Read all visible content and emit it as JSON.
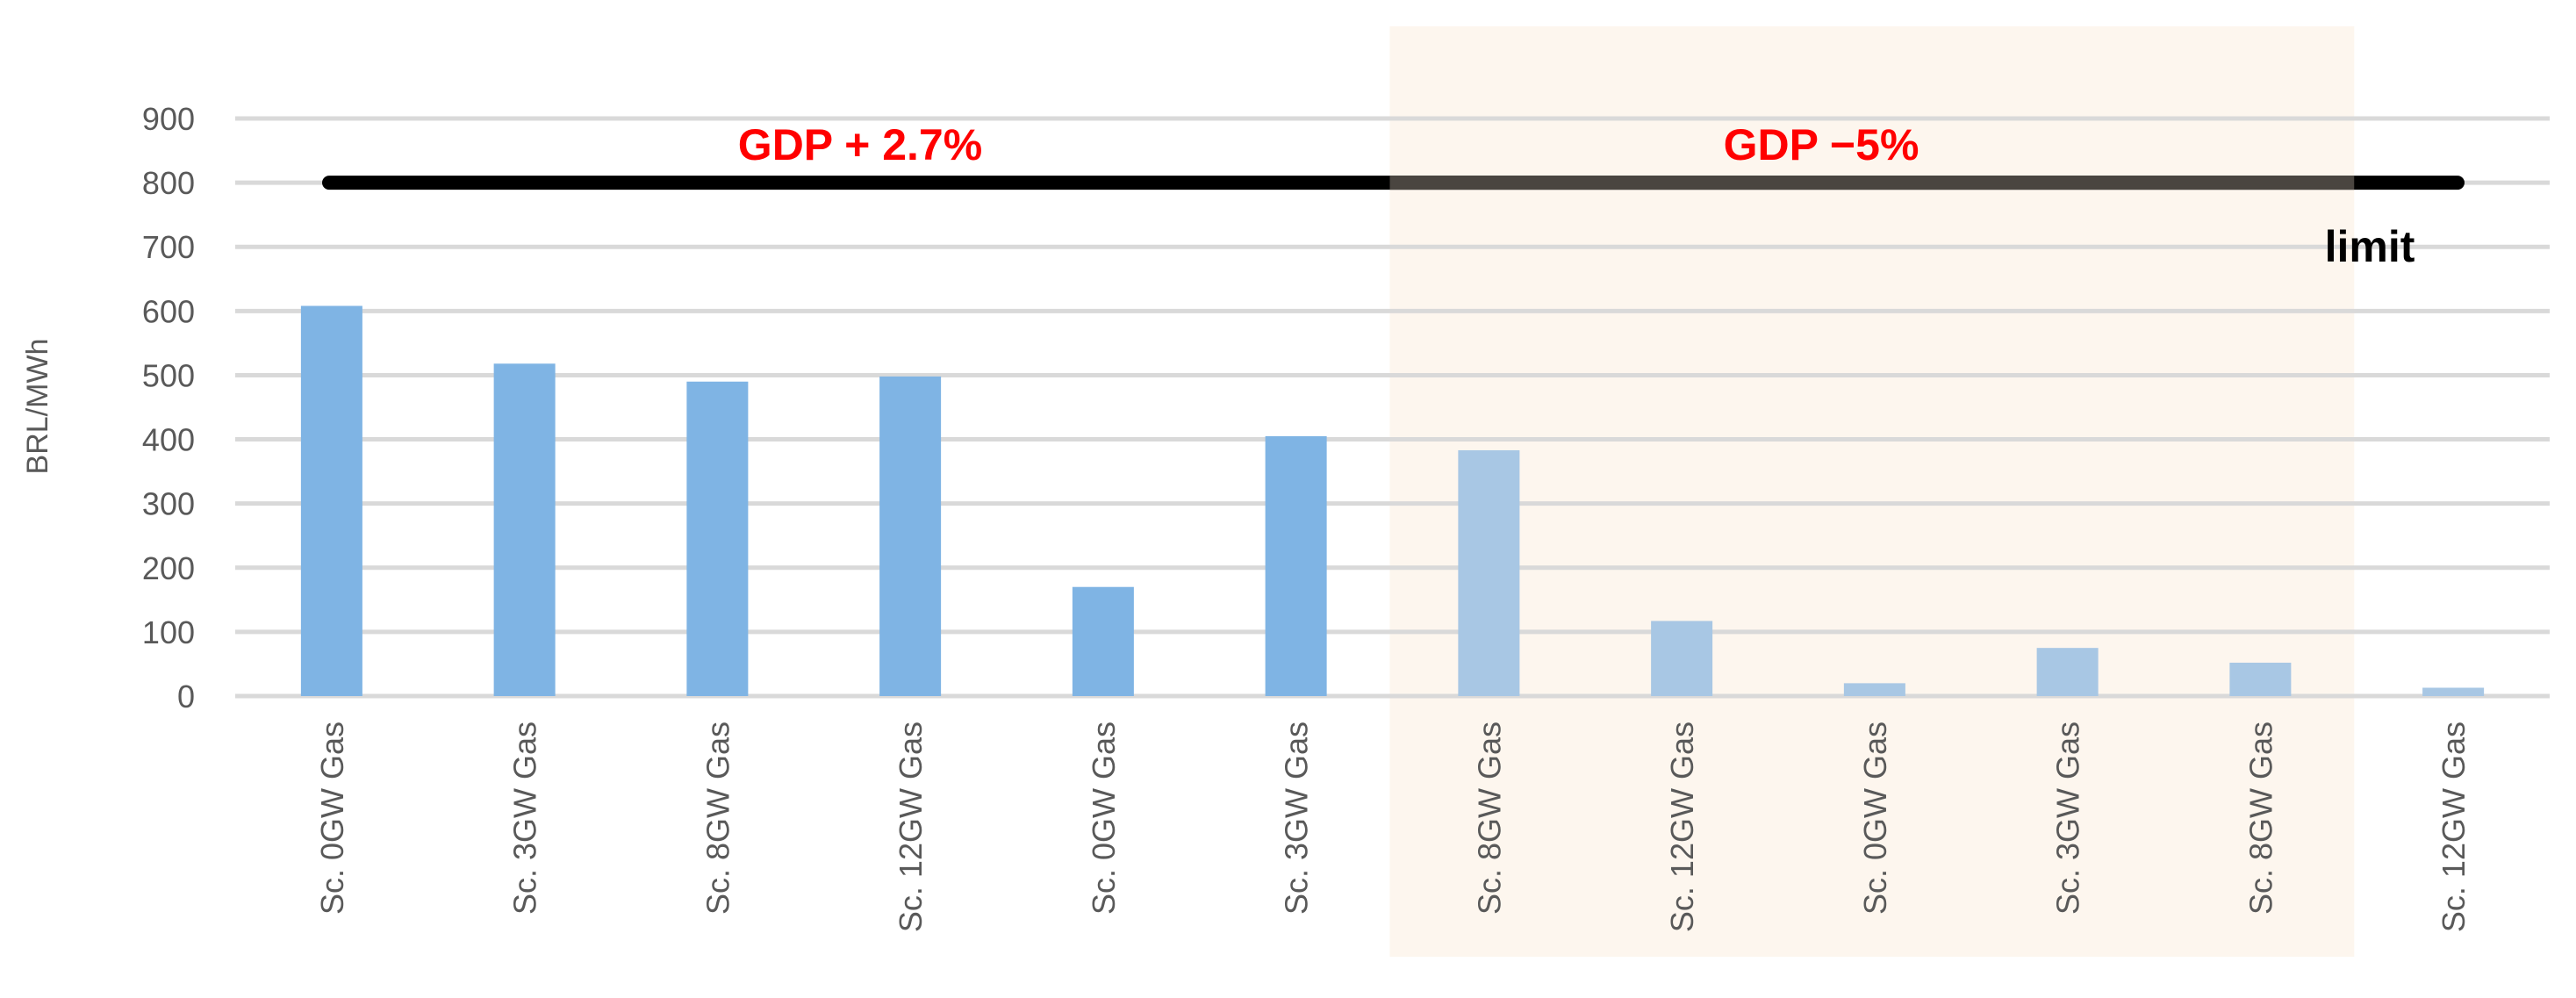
{
  "chart_data": {
    "type": "bar",
    "categories": [
      "Sc. 0GW Gas",
      "Sc. 3GW Gas",
      "Sc. 8GW Gas",
      "Sc. 12GW Gas",
      "Sc. 0GW Gas",
      "Sc. 3GW Gas",
      "Sc. 8GW Gas",
      "Sc. 12GW Gas",
      "Sc. 0GW Gas",
      "Sc. 3GW Gas",
      "Sc. 8GW Gas",
      "Sc. 12GW Gas"
    ],
    "values": [
      608,
      518,
      490,
      498,
      170,
      405,
      383,
      117,
      20,
      75,
      52,
      13
    ],
    "ylabel": "BRL/MWh",
    "xlabel": "",
    "title": "",
    "ylim": [
      0,
      900
    ],
    "yticks": [
      0,
      100,
      200,
      300,
      400,
      500,
      600,
      700,
      800,
      900
    ],
    "grid": true,
    "limit_line": {
      "value": 800,
      "label": "limit"
    },
    "regions": [
      {
        "label": "GDP  + 2.7%",
        "color": "#ff0000"
      },
      {
        "label": "GDP  −5%",
        "color": "#ff0000",
        "shaded": true,
        "shade_color": "#fdf6ee"
      }
    ],
    "colors": {
      "bar": "#7fb4e4",
      "bar_faded": "#a8c7e4",
      "grid": "#d9d9d9",
      "tick_text": "#595959",
      "limit_line": "#000000"
    }
  }
}
